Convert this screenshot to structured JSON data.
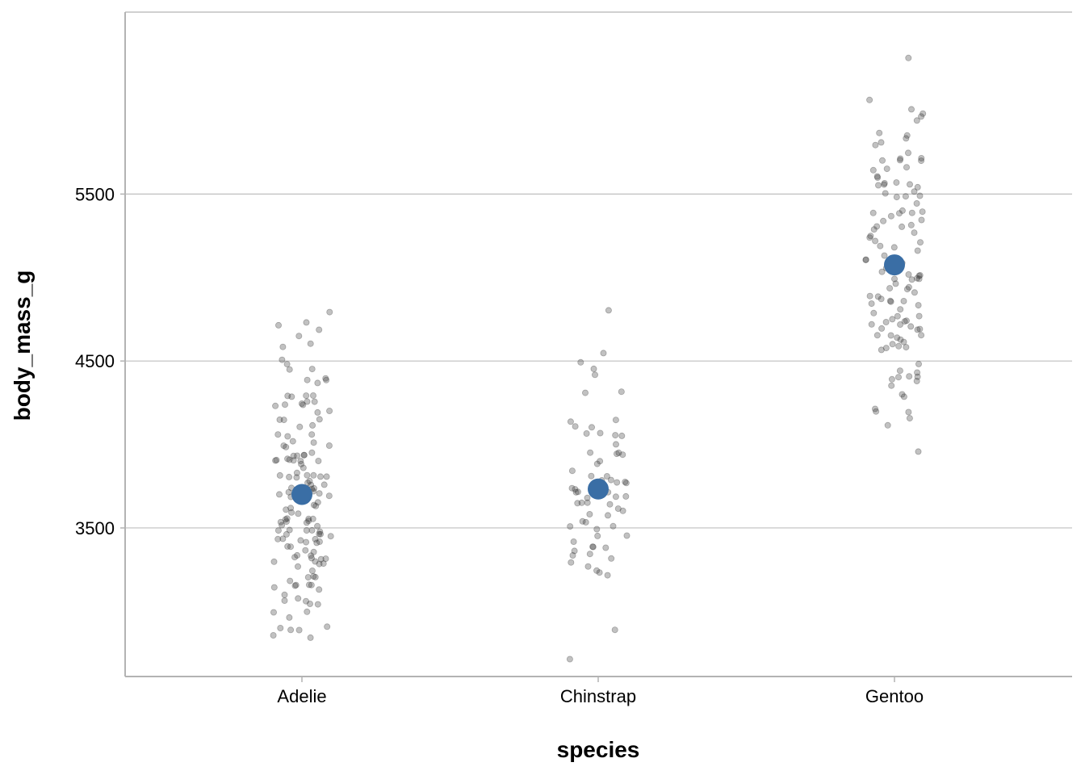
{
  "chart_data": {
    "type": "scatter",
    "title": "",
    "xlabel": "species",
    "ylabel": "body_mass_g",
    "categories": [
      "Adelie",
      "Chinstrap",
      "Gentoo"
    ],
    "ylim": [
      2610,
      6590
    ],
    "yticks": [
      3500,
      4500,
      5500
    ],
    "grid": "horizontal major lines",
    "legend": "none",
    "colors": {
      "points": "#333333",
      "mean": "#3a6ea5",
      "grid": "#bfbfbf",
      "axis": "#b3b3b3"
    },
    "series": [
      {
        "category": "Adelie",
        "mean": 3700.7,
        "values": [
          3750,
          3800,
          3250,
          3450,
          3650,
          3625,
          4675,
          3475,
          4250,
          3300,
          3700,
          3200,
          3800,
          4400,
          3700,
          3450,
          4500,
          3325,
          4200,
          3400,
          3600,
          3800,
          3950,
          3800,
          3800,
          3550,
          3200,
          3150,
          3950,
          3250,
          3900,
          3300,
          3900,
          3325,
          4150,
          3950,
          3550,
          3300,
          4650,
          3150,
          3900,
          3100,
          4400,
          3000,
          4600,
          3425,
          2975,
          3450,
          4150,
          3500,
          4300,
          3450,
          4050,
          2900,
          3700,
          3550,
          3800,
          2850,
          3750,
          3150,
          4400,
          3600,
          4050,
          2850,
          3950,
          3350,
          4100,
          3050,
          4450,
          3600,
          3900,
          3550,
          4150,
          3700,
          4250,
          3700,
          3900,
          3550,
          4000,
          3200,
          4700,
          3800,
          4200,
          3350,
          3550,
          3800,
          3500,
          3950,
          3600,
          3550,
          4300,
          3400,
          4450,
          3300,
          4300,
          3700,
          4350,
          2900,
          4100,
          3725,
          4725,
          3075,
          4250,
          2925,
          3550,
          3750,
          3900,
          3175,
          4775,
          3825,
          4600,
          3200,
          4275,
          3900,
          4075,
          2900,
          3775,
          3350,
          3325,
          3150,
          3500,
          3450,
          3875,
          3050,
          4000,
          3275,
          4300,
          3050,
          4000,
          3325,
          3500,
          3500,
          4475,
          3425,
          3900,
          3175,
          3975,
          3400,
          4250,
          3400,
          3475,
          3050,
          3725,
          3000,
          3650,
          4250,
          3475,
          3450,
          3750,
          3700,
          4000
        ]
      },
      {
        "category": "Chinstrap",
        "mean": 3733.1,
        "values": [
          3500,
          3900,
          3650,
          3525,
          3725,
          3950,
          3250,
          3750,
          4150,
          3700,
          3800,
          3775,
          3700,
          4050,
          3575,
          4050,
          3300,
          3700,
          3450,
          4400,
          3600,
          3400,
          2900,
          3800,
          3300,
          4150,
          3400,
          3800,
          3700,
          4550,
          3200,
          4300,
          3350,
          4100,
          3600,
          3900,
          3850,
          4800,
          2700,
          4500,
          3950,
          3650,
          3550,
          3500,
          3675,
          4450,
          3400,
          4300,
          3250,
          3675,
          3325,
          3950,
          3600,
          4050,
          3350,
          3450,
          3250,
          4050,
          3800,
          3525,
          3950,
          3650,
          3650,
          4000,
          3400,
          3775,
          4100,
          3775
        ]
      },
      {
        "category": "Gentoo",
        "mean": 5076.0,
        "values": [
          4500,
          5700,
          4450,
          5700,
          5400,
          4550,
          4800,
          5200,
          4400,
          5150,
          4650,
          5550,
          4650,
          5850,
          4200,
          5850,
          4150,
          6300,
          4800,
          5350,
          5700,
          5000,
          4400,
          5050,
          5000,
          5100,
          4100,
          5650,
          4600,
          5550,
          5250,
          4700,
          5050,
          6050,
          5150,
          5400,
          4950,
          5250,
          4350,
          5350,
          3950,
          5700,
          4300,
          4750,
          5550,
          4900,
          4200,
          5400,
          5100,
          5300,
          4850,
          5300,
          4400,
          5000,
          4900,
          5050,
          4300,
          5000,
          4450,
          5550,
          4200,
          5300,
          4400,
          5650,
          4700,
          5700,
          4650,
          5800,
          4700,
          5550,
          4750,
          5000,
          5100,
          5200,
          4700,
          5800,
          4600,
          6000,
          4750,
          5950,
          4625,
          5450,
          4725,
          5350,
          4750,
          5600,
          4600,
          5300,
          4875,
          5550,
          4950,
          5400,
          4750,
          5650,
          4850,
          5200,
          4925,
          4875,
          4625,
          5250,
          4850,
          5600,
          4975,
          5500,
          4725,
          5500,
          4700,
          5500,
          4575,
          5500,
          5000,
          5950,
          4650,
          5500,
          4375,
          5850,
          4875,
          6000,
          4925,
          4850,
          5750,
          5200,
          5400
        ]
      }
    ]
  }
}
